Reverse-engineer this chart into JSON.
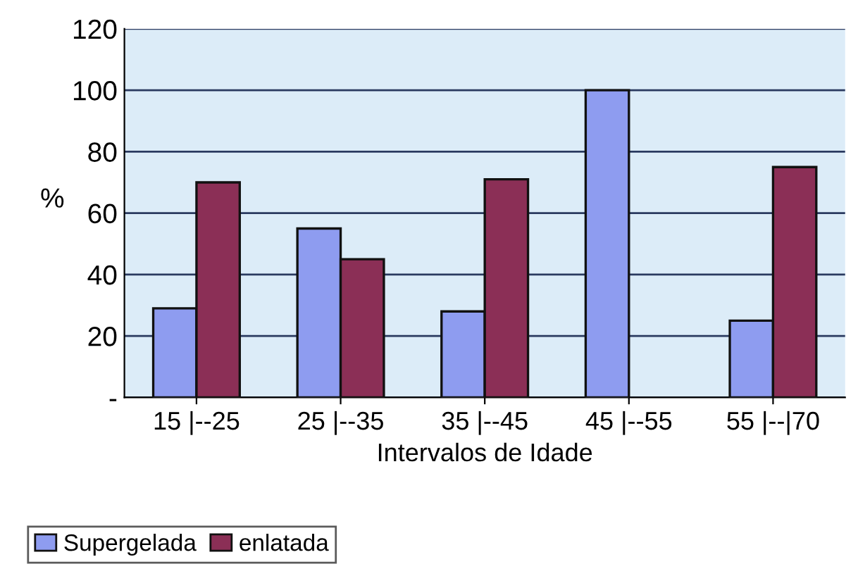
{
  "chart_data": {
    "type": "bar",
    "xlabel": "Intervalos de Idade",
    "ylabel": "%",
    "categories": [
      "15 |--25",
      "25 |--35",
      "35 |--45",
      "45 |--55",
      "55 |--|70"
    ],
    "series": [
      {
        "name": "Supergelada",
        "color": "#8e9cf0",
        "values": [
          29,
          55,
          28,
          100,
          25
        ]
      },
      {
        "name": "enlatada",
        "color": "#8b2f56",
        "values": [
          70,
          45,
          71,
          null,
          75
        ]
      }
    ],
    "ylim": [
      0,
      120
    ],
    "yticks": [
      {
        "value": 0,
        "label": "-"
      },
      20,
      40,
      60,
      80,
      100,
      120
    ],
    "grid": "y",
    "legend": "bottom left"
  }
}
